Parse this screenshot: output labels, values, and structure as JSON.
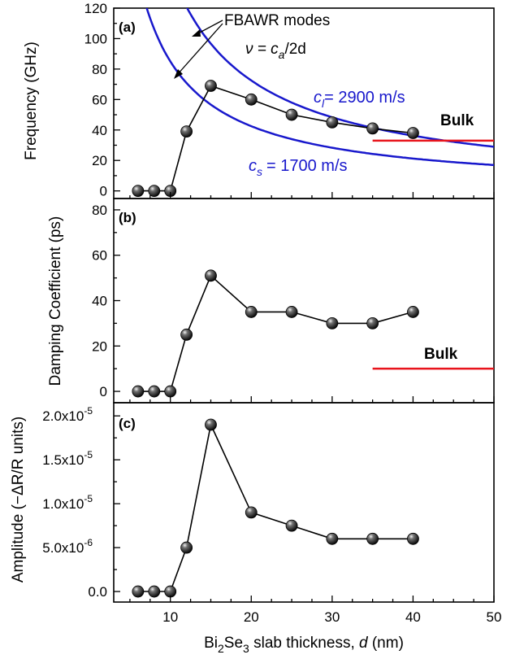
{
  "chart_data": [
    {
      "type": "scatter",
      "panel": "(a)",
      "ylabel": "Frequency (GHz)",
      "xlim": [
        3,
        50
      ],
      "ylim": [
        -5,
        120
      ],
      "yticks": [
        0,
        20,
        40,
        60,
        80,
        100,
        120
      ],
      "ytick_labels": [
        "0",
        "20",
        "40",
        "60",
        "80",
        "100",
        "120"
      ],
      "series": [
        {
          "x": [
            6,
            8,
            10,
            12,
            15,
            20,
            25,
            30,
            35,
            40
          ],
          "values": [
            0,
            0,
            0,
            39,
            69,
            60,
            50,
            45,
            41,
            38
          ]
        }
      ],
      "curves": [
        {
          "label": "c_l = 2900 m/s",
          "velocity_m_s": 2900,
          "color": "#1818cc"
        },
        {
          "label": "c_s = 1700 m/s",
          "velocity_m_s": 1700,
          "color": "#1818cc"
        }
      ],
      "bulk_line": {
        "label": "Bulk",
        "y": 33,
        "x": [
          35,
          50
        ],
        "color": "#e8141c"
      },
      "annotations": {
        "modes": "FBAWR modes",
        "formula": {
          "prefix": "ν = c",
          "sub": "a",
          "suffix": "/2d"
        },
        "cl": {
          "prefix": "c",
          "sub": "l",
          "suffix": "= 2900 m/s"
        },
        "cs": {
          "prefix": "c",
          "sub": "s",
          "suffix": "= 1700 m/s"
        }
      }
    },
    {
      "type": "scatter",
      "panel": "(b)",
      "ylabel": "Damping Coefficient (ps)",
      "xlim": [
        3,
        50
      ],
      "ylim": [
        -5,
        85
      ],
      "yticks": [
        0,
        20,
        40,
        60,
        80
      ],
      "ytick_labels": [
        "0",
        "20",
        "40",
        "60",
        "80"
      ],
      "series": [
        {
          "x": [
            6,
            8,
            10,
            12,
            15,
            20,
            25,
            30,
            35,
            40
          ],
          "values": [
            0,
            0,
            0,
            25,
            51,
            35,
            35,
            30,
            30,
            35
          ]
        }
      ],
      "bulk_line": {
        "label": "Bulk",
        "y": 10,
        "x": [
          35,
          50
        ],
        "color": "#e8141c"
      }
    },
    {
      "type": "scatter",
      "panel": "(c)",
      "ylabel": "Amplitude (−ΔR/R units)",
      "xlim": [
        3,
        50
      ],
      "ylim": [
        -1.2e-06,
        2.15e-05
      ],
      "yticks": [
        0,
        5e-06,
        1e-05,
        1.5e-05,
        2e-05
      ],
      "ytick_labels": [
        {
          "mant": "0.0",
          "exp": ""
        },
        {
          "mant": "5.0x10",
          "exp": "-6"
        },
        {
          "mant": "1.0x10",
          "exp": "-5"
        },
        {
          "mant": "1.5x10",
          "exp": "-5"
        },
        {
          "mant": "2.0x10",
          "exp": "-5"
        }
      ],
      "series": [
        {
          "x": [
            6,
            8,
            10,
            12,
            15,
            20,
            25,
            30,
            35,
            40
          ],
          "values": [
            0,
            0,
            0,
            5e-06,
            1.9e-05,
            9e-06,
            7.5e-06,
            6e-06,
            6e-06,
            6e-06
          ]
        }
      ]
    }
  ],
  "x_axis": {
    "ticks": [
      10,
      20,
      30,
      40,
      50
    ],
    "tick_labels": [
      "10",
      "20",
      "30",
      "40",
      "50"
    ],
    "label": {
      "p1": "Bi",
      "sub1": "2",
      "p2": "Se",
      "sub2": "3",
      "p3": " slab thickness, ",
      "italic": "d",
      "p4": " (nm)"
    }
  },
  "colors": {
    "data": "#000000",
    "curves": "#1818cc",
    "bulk": "#e8141c"
  }
}
